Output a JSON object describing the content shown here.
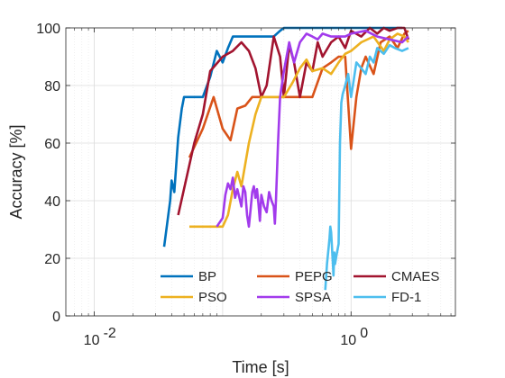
{
  "chart_data": {
    "type": "line",
    "xlabel": "Time [s]",
    "ylabel": "Accuracy [%]",
    "x_scale": "log",
    "xlim": [
      0.006,
      6.5
    ],
    "ylim": [
      0,
      100
    ],
    "x_ticks": [
      {
        "value": 0.01,
        "base": "10",
        "exp": "-2"
      },
      {
        "value": 1,
        "base": "10",
        "exp": "0"
      }
    ],
    "y_ticks": [
      0,
      20,
      40,
      60,
      80,
      100
    ],
    "grid": true,
    "minor_grid": true,
    "legend_position": "bottom-right",
    "series": [
      {
        "name": "BP",
        "color": "#0072BD",
        "points": [
          [
            0.035,
            24
          ],
          [
            0.039,
            40
          ],
          [
            0.04,
            47
          ],
          [
            0.042,
            43
          ],
          [
            0.045,
            62
          ],
          [
            0.048,
            72
          ],
          [
            0.05,
            76
          ],
          [
            0.06,
            76
          ],
          [
            0.07,
            76
          ],
          [
            0.08,
            83
          ],
          [
            0.09,
            92
          ],
          [
            0.1,
            88
          ],
          [
            0.11,
            93
          ],
          [
            0.12,
            97
          ],
          [
            0.15,
            97
          ],
          [
            0.2,
            97
          ],
          [
            0.25,
            97
          ],
          [
            0.28,
            99
          ],
          [
            0.3,
            100
          ],
          [
            0.35,
            100
          ],
          [
            0.4,
            100
          ],
          [
            0.45,
            100
          ],
          [
            0.5,
            100
          ],
          [
            0.55,
            100
          ],
          [
            0.6,
            100
          ],
          [
            0.7,
            100
          ],
          [
            0.8,
            100
          ],
          [
            1.0,
            100
          ],
          [
            1.5,
            100
          ],
          [
            2.0,
            100
          ],
          [
            2.5,
            100
          ]
        ]
      },
      {
        "name": "PEPG",
        "color": "#D95319",
        "points": [
          [
            0.055,
            55
          ],
          [
            0.07,
            65
          ],
          [
            0.085,
            76
          ],
          [
            0.1,
            65
          ],
          [
            0.115,
            61
          ],
          [
            0.13,
            72
          ],
          [
            0.15,
            73
          ],
          [
            0.17,
            76
          ],
          [
            0.2,
            76
          ],
          [
            0.25,
            76
          ],
          [
            0.3,
            76
          ],
          [
            0.35,
            76
          ],
          [
            0.4,
            76
          ],
          [
            0.45,
            76
          ],
          [
            0.5,
            76
          ],
          [
            0.6,
            86
          ],
          [
            0.7,
            88
          ],
          [
            0.8,
            90
          ],
          [
            0.9,
            90
          ],
          [
            1.0,
            58
          ],
          [
            1.1,
            76
          ],
          [
            1.2,
            86
          ],
          [
            1.3,
            90
          ],
          [
            1.5,
            84
          ],
          [
            1.7,
            95
          ],
          [
            2.0,
            97
          ],
          [
            2.3,
            93
          ],
          [
            2.6,
            98
          ],
          [
            2.8,
            99
          ]
        ]
      },
      {
        "name": "CMAES",
        "color": "#A2142F",
        "points": [
          [
            0.045,
            35
          ],
          [
            0.06,
            60
          ],
          [
            0.07,
            70
          ],
          [
            0.08,
            85
          ],
          [
            0.1,
            90
          ],
          [
            0.12,
            92
          ],
          [
            0.14,
            95
          ],
          [
            0.16,
            92
          ],
          [
            0.18,
            86
          ],
          [
            0.2,
            76
          ],
          [
            0.22,
            80
          ],
          [
            0.25,
            97
          ],
          [
            0.28,
            90
          ],
          [
            0.3,
            76
          ],
          [
            0.33,
            94
          ],
          [
            0.36,
            88
          ],
          [
            0.4,
            76
          ],
          [
            0.45,
            88
          ],
          [
            0.5,
            85
          ],
          [
            0.55,
            95
          ],
          [
            0.6,
            90
          ],
          [
            0.7,
            95
          ],
          [
            0.8,
            97
          ],
          [
            0.9,
            93
          ],
          [
            1.0,
            99
          ],
          [
            1.2,
            97
          ],
          [
            1.4,
            100
          ],
          [
            1.6,
            98
          ],
          [
            1.8,
            100
          ],
          [
            2.0,
            99
          ],
          [
            2.3,
            100
          ],
          [
            2.6,
            100
          ],
          [
            2.8,
            96
          ]
        ]
      },
      {
        "name": "PSO",
        "color": "#EDB120",
        "points": [
          [
            0.055,
            31
          ],
          [
            0.07,
            31
          ],
          [
            0.09,
            31
          ],
          [
            0.1,
            31
          ],
          [
            0.11,
            35
          ],
          [
            0.12,
            44
          ],
          [
            0.13,
            50
          ],
          [
            0.14,
            45
          ],
          [
            0.16,
            60
          ],
          [
            0.18,
            70
          ],
          [
            0.2,
            76
          ],
          [
            0.23,
            76
          ],
          [
            0.26,
            76
          ],
          [
            0.3,
            76
          ],
          [
            0.35,
            81
          ],
          [
            0.4,
            86
          ],
          [
            0.45,
            89
          ],
          [
            0.5,
            85
          ],
          [
            0.6,
            86
          ],
          [
            0.7,
            84
          ],
          [
            0.8,
            88
          ],
          [
            0.9,
            91
          ],
          [
            1.0,
            92
          ],
          [
            1.2,
            95
          ],
          [
            1.5,
            97
          ],
          [
            1.8,
            92
          ],
          [
            2.0,
            96
          ],
          [
            2.3,
            98
          ],
          [
            2.6,
            97
          ],
          [
            2.8,
            95
          ]
        ]
      },
      {
        "name": "SPSA",
        "color": "#A23BEC",
        "points": [
          [
            0.09,
            31
          ],
          [
            0.1,
            34
          ],
          [
            0.105,
            42
          ],
          [
            0.11,
            46
          ],
          [
            0.115,
            44
          ],
          [
            0.12,
            48
          ],
          [
            0.125,
            41
          ],
          [
            0.13,
            44
          ],
          [
            0.135,
            41
          ],
          [
            0.14,
            38
          ],
          [
            0.145,
            45
          ],
          [
            0.15,
            43
          ],
          [
            0.155,
            35
          ],
          [
            0.16,
            31
          ],
          [
            0.165,
            37
          ],
          [
            0.17,
            43
          ],
          [
            0.175,
            45
          ],
          [
            0.18,
            41
          ],
          [
            0.185,
            44
          ],
          [
            0.19,
            39
          ],
          [
            0.195,
            33
          ],
          [
            0.2,
            42
          ],
          [
            0.21,
            38
          ],
          [
            0.22,
            36
          ],
          [
            0.23,
            43
          ],
          [
            0.24,
            40
          ],
          [
            0.25,
            38
          ],
          [
            0.255,
            32
          ],
          [
            0.26,
            40
          ],
          [
            0.27,
            60
          ],
          [
            0.28,
            76
          ],
          [
            0.3,
            85
          ],
          [
            0.33,
            95
          ],
          [
            0.36,
            88
          ],
          [
            0.4,
            95
          ],
          [
            0.45,
            98
          ],
          [
            0.5,
            97
          ],
          [
            0.55,
            96
          ],
          [
            0.6,
            98
          ],
          [
            0.7,
            97
          ],
          [
            0.8,
            97
          ],
          [
            0.9,
            97
          ],
          [
            1.0,
            98
          ],
          [
            1.3,
            99
          ],
          [
            1.6,
            97
          ],
          [
            2.0,
            96
          ],
          [
            2.5,
            95
          ],
          [
            2.8,
            97
          ]
        ]
      },
      {
        "name": "FD-1",
        "color": "#4DBEEE",
        "points": [
          [
            0.63,
            9
          ],
          [
            0.65,
            18
          ],
          [
            0.67,
            24
          ],
          [
            0.68,
            27
          ],
          [
            0.69,
            31
          ],
          [
            0.7,
            29
          ],
          [
            0.71,
            24
          ],
          [
            0.72,
            19
          ],
          [
            0.73,
            14
          ],
          [
            0.74,
            22
          ],
          [
            0.75,
            18
          ],
          [
            0.77,
            21
          ],
          [
            0.8,
            25
          ],
          [
            0.82,
            60
          ],
          [
            0.84,
            74
          ],
          [
            0.86,
            77
          ],
          [
            0.9,
            80
          ],
          [
            0.95,
            84
          ],
          [
            1.0,
            76
          ],
          [
            1.05,
            82
          ],
          [
            1.1,
            88
          ],
          [
            1.2,
            86
          ],
          [
            1.3,
            84
          ],
          [
            1.4,
            90
          ],
          [
            1.5,
            88
          ],
          [
            1.6,
            93
          ],
          [
            1.8,
            91
          ],
          [
            2.0,
            94
          ],
          [
            2.2,
            93
          ],
          [
            2.5,
            92
          ],
          [
            2.8,
            93
          ]
        ]
      }
    ]
  }
}
